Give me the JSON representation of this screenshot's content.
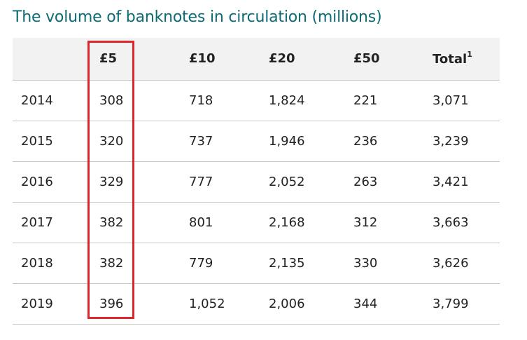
{
  "title": "The volume of banknotes in circulation (millions)",
  "table": {
    "headers": [
      "",
      "£5",
      "£10",
      "£20",
      "£50",
      "Total"
    ],
    "total_footnote_marker": "1",
    "rows": [
      [
        "2014",
        "308",
        "718",
        "1,824",
        "221",
        "3,071"
      ],
      [
        "2015",
        "320",
        "737",
        "1,946",
        "236",
        "3,239"
      ],
      [
        "2016",
        "329",
        "777",
        "2,052",
        "263",
        "3,421"
      ],
      [
        "2017",
        "382",
        "801",
        "2,168",
        "312",
        "3,663"
      ],
      [
        "2018",
        "382",
        "779",
        "2,135",
        "330",
        "3,626"
      ],
      [
        "2019",
        "396",
        "1,052",
        "2,006",
        "344",
        "3,799"
      ]
    ]
  },
  "colors": {
    "title": "#0c6b73",
    "header_background": "#f2f2f2",
    "highlight_border": "#e0262d",
    "row_divider": "#c8c8c8"
  }
}
